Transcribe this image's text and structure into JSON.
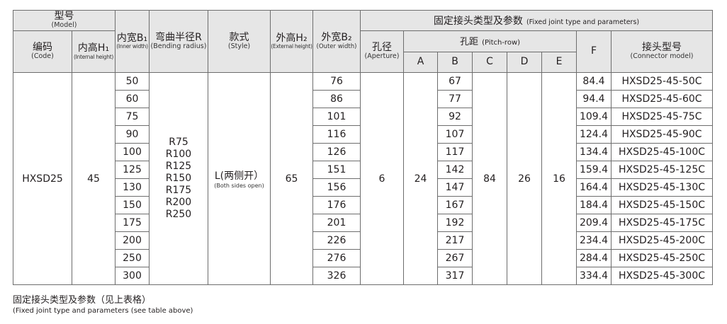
{
  "header": {
    "model": {
      "cn": "型号",
      "en": "(Model)"
    },
    "code": {
      "cn": "编码",
      "en": "(Code)"
    },
    "internal_height": {
      "cn": "内高H₁",
      "en": "(Internal height)"
    },
    "inner_width": {
      "cn": "内宽B₁",
      "en": "(Inner width)"
    },
    "bending_radius": {
      "cn": "弯曲半径R",
      "en": "(Bending radius)"
    },
    "style": {
      "cn": "款式",
      "en": "(Style)"
    },
    "external_height": {
      "cn": "外高H₂",
      "en": "(External height)"
    },
    "outer_width": {
      "cn": "外宽B₂",
      "en": "(Outer width)"
    },
    "fixed_joint": {
      "cn": "固定接头类型及参数",
      "en": "(Fixed joint type and parameters)"
    },
    "aperture": {
      "cn": "孔径",
      "en": "(Aperture)"
    },
    "pitch_row": {
      "cn": "孔距",
      "en": "(Pitch-row)"
    },
    "A": "A",
    "B": "B",
    "C": "C",
    "D": "D",
    "E": "E",
    "F": "F",
    "connector_model": {
      "cn": "接头型号",
      "en": "(Connector model)"
    }
  },
  "shared": {
    "code": "HXSD25",
    "internal_height": "45",
    "radii": "R75\nR100\nR125\nR150\nR175\nR200\nR250",
    "style_cn": "L(两侧开）",
    "style_en": "(Both sides open)",
    "external_height": "65",
    "aperture": "6",
    "A": "24",
    "C": "84",
    "D": "26",
    "E": "16"
  },
  "rows": [
    {
      "inner_width": "50",
      "outer_width": "76",
      "B": "67",
      "F": "84.4",
      "connector": "HXSD25-45-50C"
    },
    {
      "inner_width": "60",
      "outer_width": "86",
      "B": "77",
      "F": "94.4",
      "connector": "HXSD25-45-60C"
    },
    {
      "inner_width": "75",
      "outer_width": "101",
      "B": "92",
      "F": "109.4",
      "connector": "HXSD25-45-75C"
    },
    {
      "inner_width": "90",
      "outer_width": "116",
      "B": "107",
      "F": "124.4",
      "connector": "HXSD25-45-90C"
    },
    {
      "inner_width": "100",
      "outer_width": "126",
      "B": "117",
      "F": "134.4",
      "connector": "HXSD25-45-100C"
    },
    {
      "inner_width": "125",
      "outer_width": "151",
      "B": "142",
      "F": "159.4",
      "connector": "HXSD25-45-125C"
    },
    {
      "inner_width": "130",
      "outer_width": "156",
      "B": "147",
      "F": "164.4",
      "connector": "HXSD25-45-130C"
    },
    {
      "inner_width": "150",
      "outer_width": "176",
      "B": "167",
      "F": "184.4",
      "connector": "HXSD25-45-150C"
    },
    {
      "inner_width": "175",
      "outer_width": "201",
      "B": "192",
      "F": "209.4",
      "connector": "HXSD25-45-175C"
    },
    {
      "inner_width": "200",
      "outer_width": "226",
      "B": "217",
      "F": "234.4",
      "connector": "HXSD25-45-200C"
    },
    {
      "inner_width": "250",
      "outer_width": "276",
      "B": "267",
      "F": "284.4",
      "connector": "HXSD25-45-250C"
    },
    {
      "inner_width": "300",
      "outer_width": "326",
      "B": "317",
      "F": "334.4",
      "connector": "HXSD25-45-300C"
    }
  ],
  "footer": {
    "cn": "固定接头类型及参数（见上表格）",
    "en": "(Fixed joint type and parameters (see table above)"
  }
}
